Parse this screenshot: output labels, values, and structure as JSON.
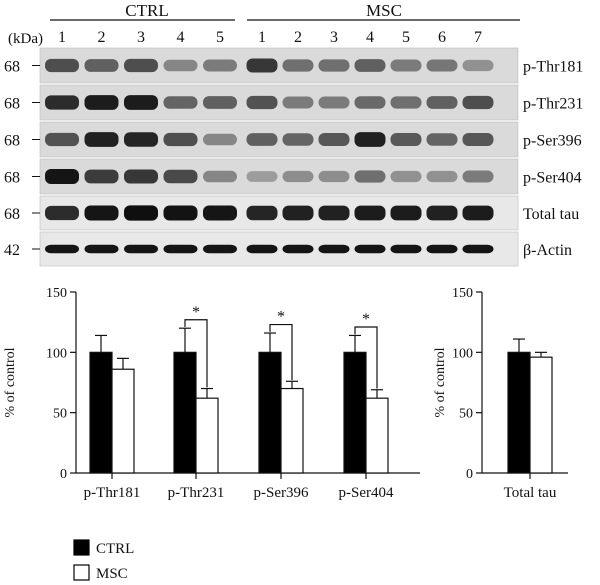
{
  "blot": {
    "groups": [
      {
        "name": "CTRL",
        "lanes": [
          "1",
          "2",
          "3",
          "4",
          "5"
        ]
      },
      {
        "name": "MSC",
        "lanes": [
          "1",
          "2",
          "3",
          "4",
          "5",
          "6",
          "7"
        ]
      }
    ],
    "unit_label": "(kDa)",
    "rows": [
      {
        "label": "p-Thr181",
        "mw": "68",
        "intensity": [
          0.7,
          0.62,
          0.7,
          0.45,
          0.5,
          0.8,
          0.55,
          0.55,
          0.62,
          0.5,
          0.52,
          0.4
        ]
      },
      {
        "label": "p-Thr231",
        "mw": "68",
        "intensity": [
          0.85,
          0.92,
          0.92,
          0.6,
          0.62,
          0.68,
          0.5,
          0.5,
          0.58,
          0.55,
          0.62,
          0.7
        ]
      },
      {
        "label": "p-Ser396",
        "mw": "68",
        "intensity": [
          0.68,
          0.9,
          0.88,
          0.7,
          0.45,
          0.62,
          0.6,
          0.66,
          0.9,
          0.65,
          0.6,
          0.66
        ]
      },
      {
        "label": "p-Ser404",
        "mw": "68",
        "intensity": [
          0.95,
          0.78,
          0.8,
          0.72,
          0.45,
          0.35,
          0.42,
          0.42,
          0.55,
          0.4,
          0.4,
          0.5
        ]
      },
      {
        "label": "Total tau",
        "mw": "68",
        "intensity": [
          0.85,
          0.95,
          0.98,
          0.96,
          0.95,
          0.88,
          0.9,
          0.9,
          0.92,
          0.92,
          0.9,
          0.92
        ]
      },
      {
        "label": "β-Actin",
        "mw": "42",
        "intensity": [
          0.95,
          0.95,
          0.95,
          0.95,
          0.95,
          0.95,
          0.95,
          0.95,
          0.95,
          0.95,
          0.95,
          0.95
        ]
      }
    ]
  },
  "chart_data": [
    {
      "type": "bar",
      "categories": [
        "p-Thr181",
        "p-Thr231",
        "p-Ser396",
        "p-Ser404"
      ],
      "series": [
        {
          "name": "CTRL",
          "color": "#000000",
          "values": [
            100,
            100,
            100,
            100
          ],
          "errors": [
            14,
            20,
            16,
            14
          ]
        },
        {
          "name": "MSC",
          "color": "#ffffff",
          "values": [
            86,
            62,
            70,
            62
          ],
          "errors": [
            9,
            8,
            6,
            7
          ]
        }
      ],
      "significance": [
        {
          "category": "p-Thr231",
          "label": "*"
        },
        {
          "category": "p-Ser396",
          "label": "*"
        },
        {
          "category": "p-Ser404",
          "label": "*"
        }
      ],
      "ylabel": "% of control",
      "ylim": [
        0,
        150
      ],
      "yticks": [
        "0",
        "50",
        "100",
        "150"
      ],
      "grid": false
    },
    {
      "type": "bar",
      "categories": [
        "Total tau"
      ],
      "series": [
        {
          "name": "CTRL",
          "color": "#000000",
          "values": [
            100
          ],
          "errors": [
            11
          ]
        },
        {
          "name": "MSC",
          "color": "#ffffff",
          "values": [
            96
          ],
          "errors": [
            4
          ]
        }
      ],
      "ylabel": "% of control",
      "ylim": [
        0,
        150
      ],
      "yticks": [
        "0",
        "50",
        "100",
        "150"
      ],
      "grid": false
    }
  ],
  "legend": {
    "placement": "bottom-left",
    "items": [
      {
        "label": "CTRL",
        "color": "#000000"
      },
      {
        "label": "MSC",
        "color": "#ffffff"
      }
    ]
  }
}
